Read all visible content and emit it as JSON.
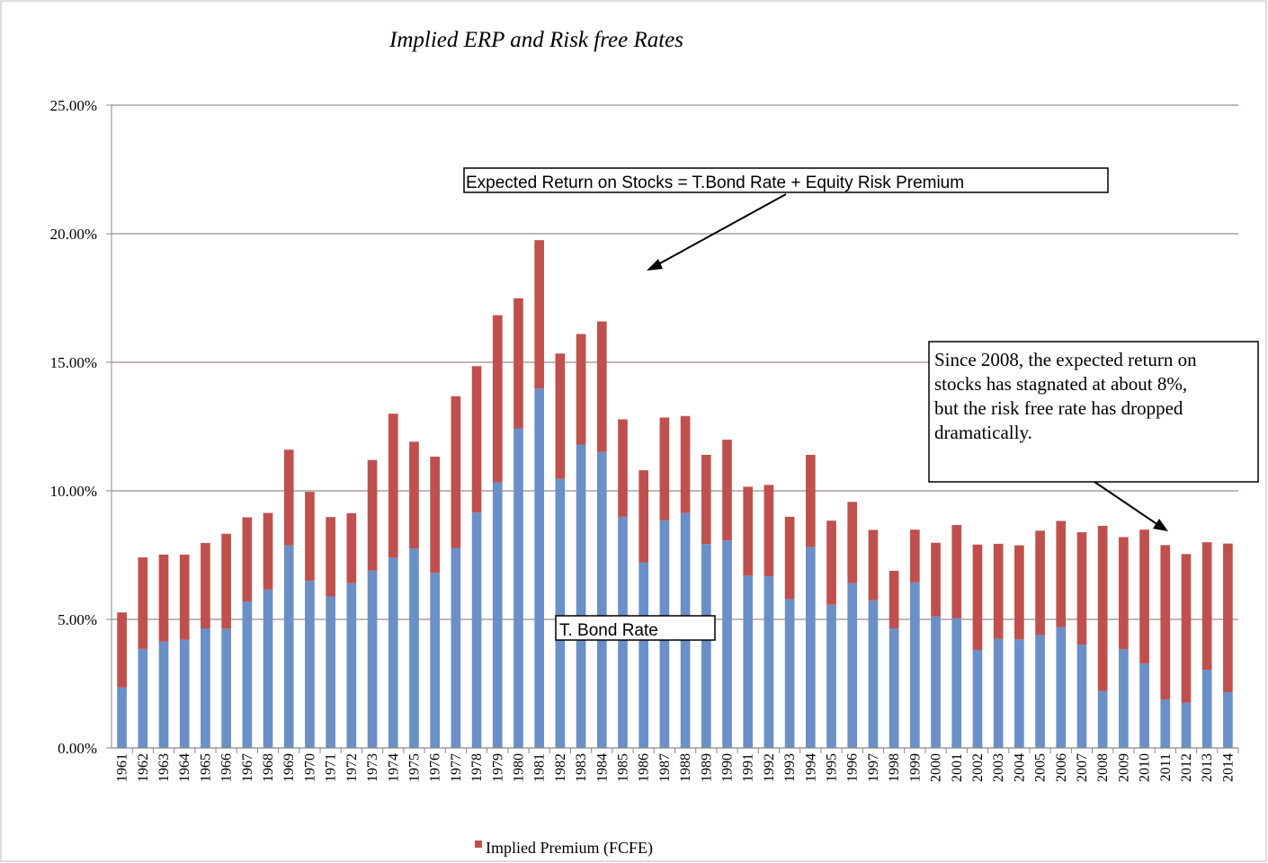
{
  "chart_data": {
    "type": "bar",
    "stacked": true,
    "title": "Implied ERP and Risk free Rates",
    "categories": [
      "1961",
      "1962",
      "1963",
      "1964",
      "1965",
      "1966",
      "1967",
      "1968",
      "1969",
      "1970",
      "1971",
      "1972",
      "1973",
      "1974",
      "1975",
      "1976",
      "1977",
      "1978",
      "1979",
      "1980",
      "1981",
      "1982",
      "1983",
      "1984",
      "1985",
      "1986",
      "1987",
      "1988",
      "1989",
      "1990",
      "1991",
      "1992",
      "1993",
      "1994",
      "1995",
      "1996",
      "1997",
      "1998",
      "1999",
      "2000",
      "2001",
      "2002",
      "2003",
      "2004",
      "2005",
      "2006",
      "2007",
      "2008",
      "2009",
      "2010",
      "2011",
      "2012",
      "2013",
      "2014"
    ],
    "series": [
      {
        "name": "",
        "color": "#6b8fc7",
        "values": [
          2.35,
          3.85,
          4.14,
          4.21,
          4.65,
          4.64,
          5.7,
          6.16,
          7.88,
          6.5,
          5.89,
          6.41,
          6.9,
          7.4,
          7.76,
          6.81,
          7.78,
          9.15,
          10.33,
          12.43,
          13.98,
          10.47,
          11.8,
          11.51,
          8.99,
          7.22,
          8.86,
          9.14,
          7.93,
          8.07,
          6.7,
          6.68,
          5.79,
          7.82,
          5.57,
          6.41,
          5.74,
          4.65,
          6.44,
          5.11,
          5.05,
          3.81,
          4.25,
          4.22,
          4.39,
          4.7,
          4.02,
          2.21,
          3.84,
          3.29,
          1.88,
          1.76,
          3.04,
          2.17
        ]
      },
      {
        "name": "Implied Premium (FCFE)",
        "color": "#c0504d",
        "values": [
          2.92,
          3.56,
          3.38,
          3.31,
          3.32,
          3.69,
          3.27,
          2.98,
          3.72,
          3.46,
          3.09,
          2.72,
          4.3,
          5.6,
          4.15,
          4.52,
          5.9,
          5.7,
          6.5,
          5.06,
          5.77,
          4.87,
          4.3,
          5.08,
          3.79,
          3.58,
          3.99,
          3.77,
          3.47,
          3.92,
          3.46,
          3.55,
          3.2,
          3.58,
          3.27,
          3.16,
          2.74,
          2.24,
          2.05,
          2.87,
          3.62,
          4.1,
          3.69,
          3.66,
          4.06,
          4.13,
          4.37,
          6.43,
          4.36,
          5.2,
          6.01,
          5.78,
          4.96,
          5.78
        ]
      }
    ],
    "ylim": [
      0,
      25
    ],
    "yticks": [
      "0.00%",
      "5.00%",
      "10.00%",
      "15.00%",
      "20.00%",
      "25.00%"
    ],
    "ytick_values": [
      0,
      5,
      10,
      15,
      20,
      25
    ],
    "grid": true,
    "legend_position": "bottom",
    "annotations": {
      "expected_return": "Expected Return on Stocks = T.Bond Rate + Equity Risk Premium",
      "tbond": "T. Bond Rate",
      "since2008": [
        "Since 2008, the expected return on",
        "stocks has stagnated at about 8%,",
        "but the risk free rate has dropped",
        "dramatically."
      ]
    }
  }
}
